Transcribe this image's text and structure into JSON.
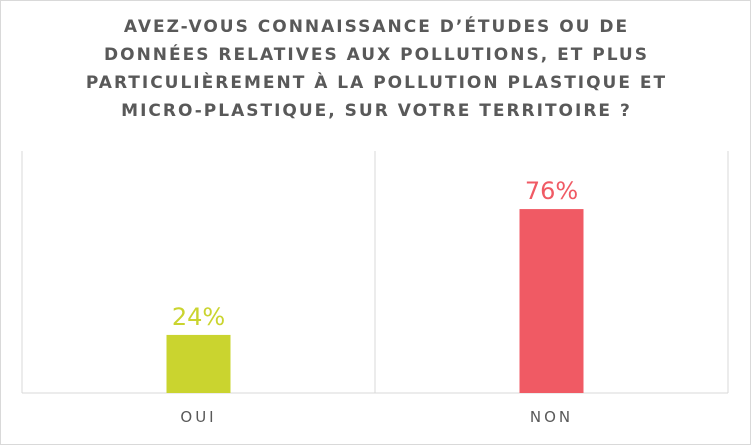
{
  "title_lines": [
    "AVEZ-VOUS CONNAISSANCE D’ÉTUDES OU DE",
    "DONNÉES RELATIVES AUX POLLUTIONS, ET PLUS",
    "PARTICULIÈREMENT À LA POLLUTION PLASTIQUE ET",
    "MICRO-PLASTIQUE, SUR VOTRE TERRITOIRE ?"
  ],
  "chart_data": {
    "type": "bar",
    "title": "AVEZ-VOUS CONNAISSANCE D’ÉTUDES OU DE DONNÉES RELATIVES AUX POLLUTIONS, ET PLUS PARTICULIÈREMENT À LA POLLUTION PLASTIQUE ET MICRO-PLASTIQUE, SUR VOTRE TERRITOIRE ?",
    "categories": [
      "OUI",
      "NON"
    ],
    "values": [
      24,
      76
    ],
    "value_labels": [
      "24%",
      "76%"
    ],
    "colors": [
      "#cad42f",
      "#f05a64"
    ],
    "ylim": [
      0,
      100
    ],
    "xlabel": "",
    "ylabel": "",
    "grid": true,
    "legend": false
  }
}
